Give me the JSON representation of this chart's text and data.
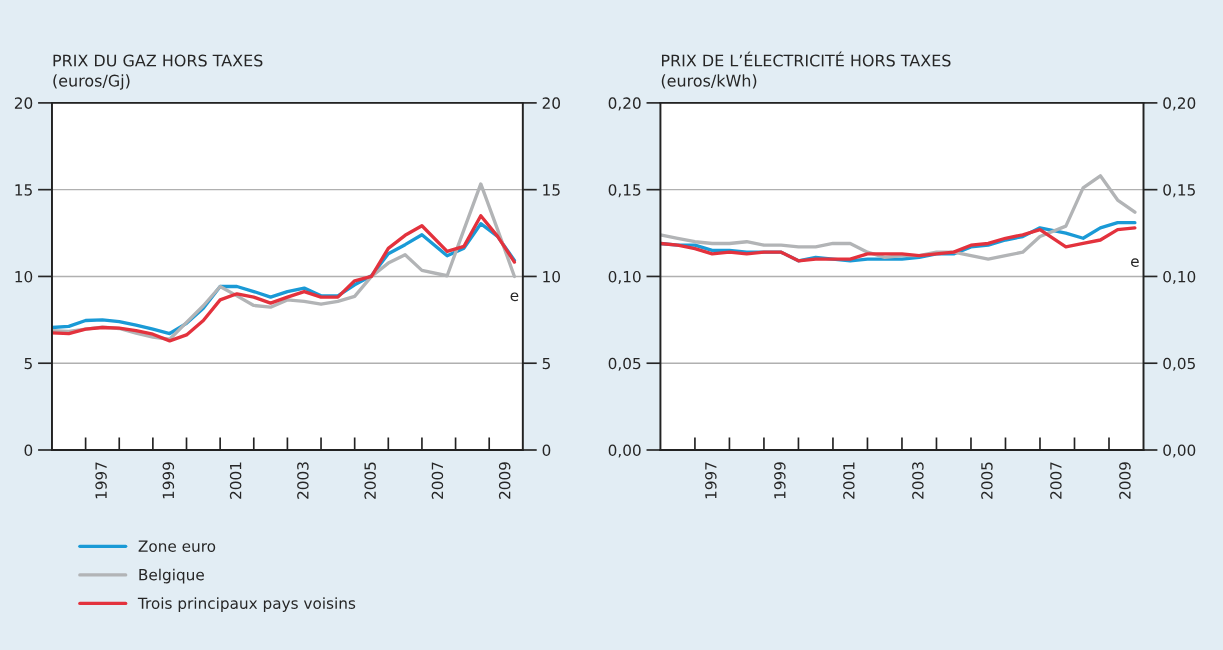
{
  "chart_data": [
    {
      "type": "line",
      "title": "PRIX DU GAZ HORS TAXES",
      "subtitle": "(euros/Gj)",
      "x": [
        1996.0,
        1996.5,
        1997.0,
        1997.5,
        1998.0,
        1998.5,
        1999.0,
        1999.5,
        2000.0,
        2000.5,
        2001.0,
        2001.5,
        2002.0,
        2002.5,
        2003.0,
        2003.5,
        2004.0,
        2004.5,
        2005.0,
        2005.5,
        2006.0,
        2006.5,
        2007.0,
        2007.75,
        2008.25,
        2008.75,
        2009.25,
        2009.75
      ],
      "series": [
        {
          "name": "Zone euro",
          "color": "#1a9ad6",
          "values": [
            7.06,
            7.12,
            7.46,
            7.5,
            7.4,
            7.2,
            6.96,
            6.71,
            7.3,
            8.17,
            9.42,
            9.42,
            9.13,
            8.81,
            9.13,
            9.33,
            8.88,
            8.88,
            9.52,
            10.04,
            11.31,
            11.83,
            12.4,
            11.19,
            11.63,
            13.04,
            12.31,
            10.92
          ]
        },
        {
          "name": "Belgique",
          "color": "#b2b4b6",
          "values": [
            6.88,
            6.83,
            6.96,
            7.08,
            7.0,
            6.73,
            6.5,
            6.38,
            7.35,
            8.31,
            9.42,
            8.88,
            8.33,
            8.23,
            8.65,
            8.56,
            8.4,
            8.56,
            8.85,
            10.0,
            10.77,
            11.25,
            10.35,
            10.04,
            12.7,
            15.33,
            12.7,
            10.0
          ]
        },
        {
          "name": "Trois principaux pays voisins",
          "color": "#e3323d",
          "values": [
            6.75,
            6.71,
            6.96,
            7.06,
            7.02,
            6.88,
            6.67,
            6.29,
            6.63,
            7.46,
            8.65,
            9.0,
            8.81,
            8.46,
            8.81,
            9.13,
            8.81,
            8.81,
            9.75,
            10.0,
            11.62,
            12.37,
            12.92,
            11.44,
            11.73,
            13.5,
            12.31,
            10.83
          ]
        }
      ],
      "xlim": [
        1996,
        2010
      ],
      "xticks": [
        {
          "value": 1997,
          "label": null
        },
        {
          "value": 1998,
          "label": null
        },
        {
          "value": 1999,
          "label": null
        },
        {
          "value": 2000,
          "label": null
        },
        {
          "value": 2001,
          "label": null
        },
        {
          "value": 2002,
          "label": null
        },
        {
          "value": 2003,
          "label": null
        },
        {
          "value": 2004,
          "label": null
        },
        {
          "value": 2005,
          "label": null
        },
        {
          "value": 2006,
          "label": null
        },
        {
          "value": 2007,
          "label": null
        },
        {
          "value": 2008,
          "label": null
        },
        {
          "value": 2009,
          "label": null
        },
        {
          "value": 1997.5,
          "label": "1997"
        },
        {
          "value": 1999.5,
          "label": "1999"
        },
        {
          "value": 2001.5,
          "label": "2001"
        },
        {
          "value": 2003.5,
          "label": "2003"
        },
        {
          "value": 2005.5,
          "label": "2005"
        },
        {
          "value": 2007.5,
          "label": "2007"
        },
        {
          "value": 2009.5,
          "label": "2009"
        }
      ],
      "ylim": [
        0,
        20
      ],
      "yticks": [
        0,
        5,
        10,
        15,
        20
      ],
      "y2lim": [
        0,
        20
      ],
      "y2ticks": [
        0,
        5,
        10,
        15,
        20
      ],
      "grid": "y",
      "legend": "bottom",
      "line_style": "solid",
      "annotations": [
        "e"
      ]
    },
    {
      "type": "line",
      "title": "PRIX DE L’ÉLECTRICITÉ HORS TAXES",
      "subtitle": "(euros/kWh)",
      "x": [
        1996.0,
        1996.5,
        1997.0,
        1997.5,
        1998.0,
        1998.5,
        1999.0,
        1999.5,
        2000.0,
        2000.5,
        2001.0,
        2001.5,
        2002.0,
        2002.5,
        2003.0,
        2003.5,
        2004.0,
        2004.5,
        2005.0,
        2005.5,
        2006.0,
        2006.5,
        2007.0,
        2007.75,
        2008.25,
        2008.75,
        2009.25,
        2009.75
      ],
      "series": [
        {
          "color": "#1a9ad6",
          "values": [
            0.119,
            0.118,
            0.118,
            0.115,
            0.115,
            0.114,
            0.114,
            0.114,
            0.109,
            0.111,
            0.11,
            0.109,
            0.11,
            0.11,
            0.11,
            0.111,
            0.113,
            0.113,
            0.117,
            0.118,
            0.121,
            0.123,
            0.128,
            0.125,
            0.122,
            0.128,
            0.131,
            0.131
          ]
        },
        {
          "color": "#b2b4b6",
          "values": [
            0.124,
            0.122,
            0.12,
            0.119,
            0.119,
            0.12,
            0.118,
            0.118,
            0.117,
            0.117,
            0.119,
            0.119,
            0.114,
            0.111,
            0.112,
            0.112,
            0.114,
            0.114,
            0.112,
            0.11,
            0.112,
            0.114,
            0.123,
            0.129,
            0.151,
            0.158,
            0.144,
            0.137
          ]
        },
        {
          "color": "#e3323d",
          "values": [
            0.119,
            0.118,
            0.116,
            0.113,
            0.114,
            0.113,
            0.114,
            0.114,
            0.109,
            0.11,
            0.11,
            0.11,
            0.113,
            0.113,
            0.113,
            0.112,
            0.113,
            0.114,
            0.118,
            0.119,
            0.122,
            0.124,
            0.127,
            0.117,
            0.119,
            0.121,
            0.127,
            0.128
          ]
        }
      ],
      "xlim": [
        1996,
        2010
      ],
      "xticks": [
        {
          "value": 1997,
          "label": null
        },
        {
          "value": 1998,
          "label": null
        },
        {
          "value": 1999,
          "label": null
        },
        {
          "value": 2000,
          "label": null
        },
        {
          "value": 2001,
          "label": null
        },
        {
          "value": 2002,
          "label": null
        },
        {
          "value": 2003,
          "label": null
        },
        {
          "value": 2004,
          "label": null
        },
        {
          "value": 2005,
          "label": null
        },
        {
          "value": 2006,
          "label": null
        },
        {
          "value": 2007,
          "label": null
        },
        {
          "value": 2008,
          "label": null
        },
        {
          "value": 2009,
          "label": null
        },
        {
          "value": 1997.5,
          "label": "1997"
        },
        {
          "value": 1999.5,
          "label": "1999"
        },
        {
          "value": 2001.5,
          "label": "2001"
        },
        {
          "value": 2003.5,
          "label": "2003"
        },
        {
          "value": 2005.5,
          "label": "2005"
        },
        {
          "value": 2007.5,
          "label": "2007"
        },
        {
          "value": 2009.5,
          "label": "2009"
        }
      ],
      "ylim": [
        0,
        0.2
      ],
      "yticks": [
        {
          "value": 0,
          "label": "0,00"
        },
        {
          "value": 0.05,
          "label": "0,05"
        },
        {
          "value": 0.1,
          "label": "0,10"
        },
        {
          "value": 0.15,
          "label": "0,15"
        },
        {
          "value": 0.2,
          "label": "0,20"
        }
      ],
      "y2lim": [
        0,
        0.2
      ],
      "y2ticks": [
        {
          "value": 0,
          "label": "0,00"
        },
        {
          "value": 0.05,
          "label": "0,05"
        },
        {
          "value": 0.1,
          "label": "0,10"
        },
        {
          "value": 0.15,
          "label": "0,15"
        },
        {
          "value": 0.2,
          "label": "0,20"
        }
      ],
      "grid": "y",
      "line_style": "solid",
      "annotations": [
        "e"
      ]
    }
  ]
}
